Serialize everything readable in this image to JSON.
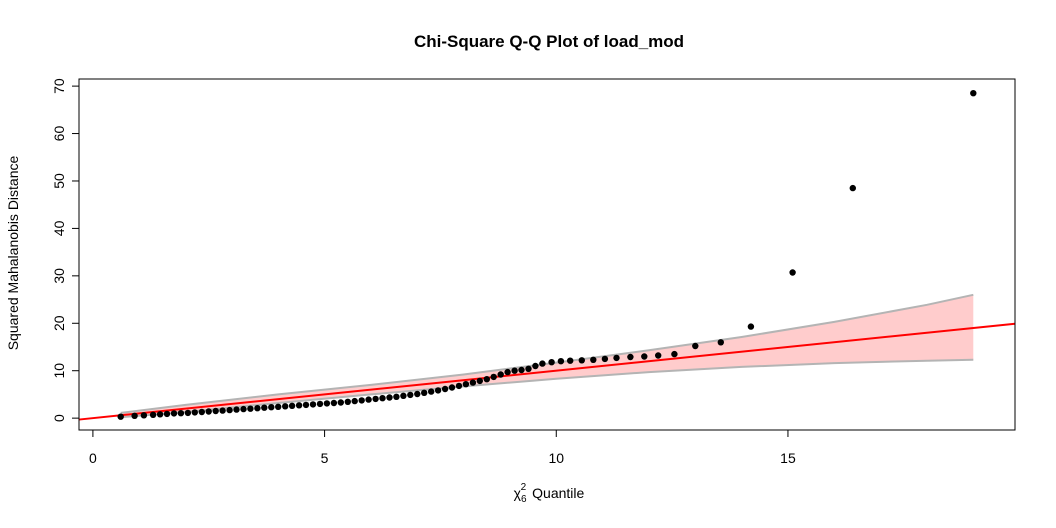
{
  "chart_data": {
    "type": "scatter",
    "title": "Chi-Square Q-Q Plot of load_mod",
    "xlabel": {
      "symbol": "χ",
      "superscript": "2",
      "subscript": "6",
      "text": "Quantile"
    },
    "ylabel": "Squared Mahalanobis Distance",
    "xlim": [
      -0.3,
      19.9
    ],
    "ylim": [
      -2.5,
      71.5
    ],
    "x_ticks": [
      0,
      5,
      10,
      15
    ],
    "y_ticks": [
      0,
      10,
      20,
      30,
      40,
      50,
      60,
      70
    ],
    "grid": false,
    "reference_line": {
      "intercept": 0.0,
      "slope": 1.0,
      "color": "#ff0000"
    },
    "confidence_band": {
      "x": [
        0.6,
        2,
        4,
        6,
        8,
        10,
        12,
        14,
        16,
        18,
        19.0
      ],
      "lower": [
        0.2,
        1.3,
        3.2,
        5.0,
        6.7,
        8.3,
        9.7,
        10.8,
        11.6,
        12.1,
        12.3
      ],
      "upper": [
        1.1,
        2.8,
        5.0,
        7.0,
        9.2,
        11.7,
        14.3,
        17.1,
        20.3,
        23.9,
        26.0
      ],
      "fill": "#ffcccc",
      "edge": "#b4b4b4"
    },
    "series": [
      {
        "points": [
          [
            0.6,
            0.3
          ],
          [
            0.9,
            0.5
          ],
          [
            1.1,
            0.6
          ],
          [
            1.3,
            0.7
          ],
          [
            1.45,
            0.8
          ],
          [
            1.6,
            0.9
          ],
          [
            1.75,
            1.0
          ],
          [
            1.9,
            1.05
          ],
          [
            2.05,
            1.1
          ],
          [
            2.2,
            1.2
          ],
          [
            2.35,
            1.3
          ],
          [
            2.5,
            1.4
          ],
          [
            2.65,
            1.5
          ],
          [
            2.8,
            1.6
          ],
          [
            2.95,
            1.7
          ],
          [
            3.1,
            1.8
          ],
          [
            3.25,
            1.9
          ],
          [
            3.4,
            2.0
          ],
          [
            3.55,
            2.1
          ],
          [
            3.7,
            2.2
          ],
          [
            3.85,
            2.3
          ],
          [
            4.0,
            2.4
          ],
          [
            4.15,
            2.5
          ],
          [
            4.3,
            2.6
          ],
          [
            4.45,
            2.7
          ],
          [
            4.6,
            2.8
          ],
          [
            4.75,
            2.9
          ],
          [
            4.9,
            3.0
          ],
          [
            5.05,
            3.1
          ],
          [
            5.2,
            3.2
          ],
          [
            5.35,
            3.3
          ],
          [
            5.5,
            3.45
          ],
          [
            5.65,
            3.6
          ],
          [
            5.8,
            3.75
          ],
          [
            5.95,
            3.9
          ],
          [
            6.1,
            4.05
          ],
          [
            6.25,
            4.2
          ],
          [
            6.4,
            4.35
          ],
          [
            6.55,
            4.5
          ],
          [
            6.7,
            4.7
          ],
          [
            6.85,
            4.9
          ],
          [
            7.0,
            5.1
          ],
          [
            7.15,
            5.35
          ],
          [
            7.3,
            5.6
          ],
          [
            7.45,
            5.85
          ],
          [
            7.6,
            6.15
          ],
          [
            7.75,
            6.45
          ],
          [
            7.9,
            6.8
          ],
          [
            8.05,
            7.15
          ],
          [
            8.2,
            7.5
          ],
          [
            8.35,
            7.85
          ],
          [
            8.5,
            8.2
          ],
          [
            8.65,
            8.7
          ],
          [
            8.8,
            9.2
          ],
          [
            8.95,
            9.7
          ],
          [
            9.1,
            10.0
          ],
          [
            9.25,
            10.15
          ],
          [
            9.4,
            10.4
          ],
          [
            9.55,
            11.0
          ],
          [
            9.7,
            11.5
          ],
          [
            9.9,
            11.8
          ],
          [
            10.1,
            12.0
          ],
          [
            10.3,
            12.1
          ],
          [
            10.55,
            12.2
          ],
          [
            10.8,
            12.3
          ],
          [
            11.05,
            12.5
          ],
          [
            11.3,
            12.7
          ],
          [
            11.6,
            12.9
          ],
          [
            11.9,
            13.0
          ],
          [
            12.2,
            13.2
          ],
          [
            12.55,
            13.5
          ],
          [
            13.0,
            15.2
          ],
          [
            13.55,
            16.0
          ],
          [
            14.2,
            19.3
          ],
          [
            15.1,
            30.7
          ],
          [
            16.4,
            48.5
          ],
          [
            19.0,
            68.5
          ]
        ],
        "color": "#000000"
      }
    ]
  }
}
